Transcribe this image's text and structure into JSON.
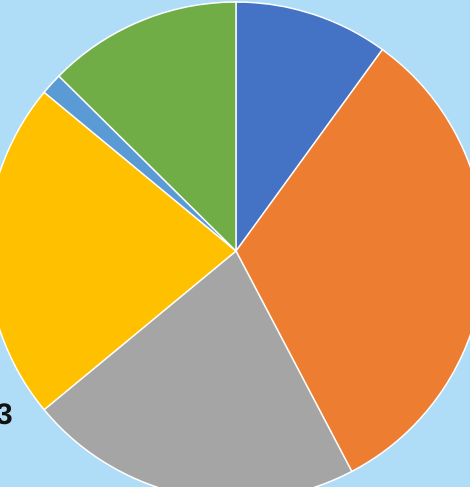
{
  "chart_data": {
    "type": "pie",
    "title": "",
    "slices": [
      {
        "value": 10.0,
        "color": "#4472c4"
      },
      {
        "value": 32.3,
        "color": "#ed7d31"
      },
      {
        "value": 21.7,
        "color": "#a5a5a5"
      },
      {
        "value": 22.0,
        "color": "#ffc000"
      },
      {
        "value": 1.4,
        "color": "#5b9bd5"
      },
      {
        "value": 12.6,
        "color": "#70ad47"
      }
    ],
    "start_angle_deg": 0,
    "direction": "clockwise",
    "legend": "none"
  },
  "labels": {
    "partial_label": "3"
  },
  "colors": {
    "background": "#afdcf6"
  }
}
